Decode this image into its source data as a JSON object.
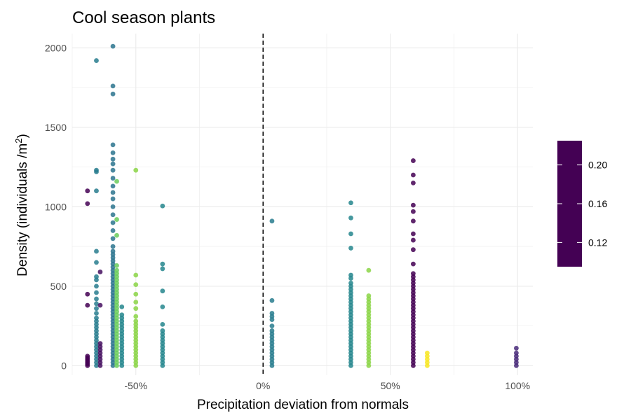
{
  "chart_data": {
    "type": "scatter",
    "title": "Cool season plants",
    "xlabel": "Precipitation deviation from normals",
    "ylabel": "Density (individuals /m",
    "ylabel_superscript": "2",
    "ylabel_suffix": ")",
    "xlim": [
      -0.75,
      1.06
    ],
    "ylim": [
      -60,
      2090
    ],
    "x_ticks": [
      -0.5,
      0,
      0.5,
      1.0
    ],
    "x_tick_labels": [
      "-50%",
      "0%",
      "50%",
      "100%"
    ],
    "y_ticks": [
      0,
      500,
      1000,
      1500,
      2000
    ],
    "y_tick_labels": [
      "0",
      "500",
      "1000",
      "1500",
      "2000"
    ],
    "reference_line": {
      "x": 0,
      "style": "dashed",
      "color": "#000000"
    },
    "grid": true,
    "legend": {
      "position": "right",
      "type": "colorbar",
      "range": [
        0.095,
        0.225
      ],
      "ticks": [
        0.12,
        0.16,
        0.2
      ],
      "tick_labels": [
        "0.12",
        "0.16",
        "0.20"
      ],
      "palette": [
        "#440154",
        "#482878",
        "#3e4989",
        "#31688e",
        "#26828e",
        "#1f9e89",
        "#35b779",
        "#6ece58",
        "#b5de2b",
        "#fde725"
      ]
    },
    "groups": [
      {
        "x": -0.69,
        "c": 0.225,
        "y": [
          0,
          10,
          20,
          30,
          40,
          50,
          60,
          380,
          450,
          1020,
          1100
        ]
      },
      {
        "x": -0.655,
        "c": 0.17,
        "y": [
          0,
          20,
          40,
          60,
          80,
          100,
          120,
          140,
          160,
          180,
          200,
          220,
          240,
          260,
          280,
          300,
          330,
          360,
          390,
          420,
          460,
          500,
          540,
          560,
          650,
          720,
          1100,
          1220,
          1230,
          1920
        ]
      },
      {
        "x": -0.64,
        "c": 0.22,
        "y": [
          0,
          20,
          40,
          60,
          80,
          100,
          120,
          140,
          380,
          590
        ]
      },
      {
        "x": -0.59,
        "c": 0.175,
        "y": [
          0,
          20,
          40,
          60,
          80,
          100,
          120,
          140,
          160,
          180,
          200,
          220,
          240,
          260,
          280,
          300,
          320,
          340,
          360,
          380,
          400,
          420,
          440,
          460,
          480,
          500,
          520,
          540,
          560,
          580,
          600,
          620,
          640,
          660,
          680,
          700,
          720,
          750,
          800,
          850,
          900,
          950,
          1000,
          1050,
          1090,
          1130,
          1180,
          1230,
          1270,
          1300,
          1340,
          1390,
          1710,
          1760,
          2010
        ]
      },
      {
        "x": -0.575,
        "c": 0.125,
        "y": [
          0,
          20,
          40,
          60,
          80,
          100,
          120,
          140,
          160,
          180,
          200,
          220,
          240,
          260,
          280,
          300,
          320,
          340,
          360,
          380,
          400,
          420,
          440,
          460,
          480,
          500,
          520,
          540,
          560,
          580,
          600,
          630,
          820,
          920,
          1160
        ]
      },
      {
        "x": -0.555,
        "c": 0.165,
        "y": [
          0,
          20,
          40,
          60,
          80,
          100,
          120,
          140,
          160,
          180,
          200,
          220,
          240,
          260,
          280,
          300,
          320,
          370
        ]
      },
      {
        "x": -0.5,
        "c": 0.118,
        "y": [
          0,
          20,
          40,
          60,
          80,
          100,
          120,
          140,
          160,
          180,
          200,
          220,
          240,
          260,
          280,
          310,
          360,
          400,
          450,
          510,
          570,
          1230
        ]
      },
      {
        "x": -0.395,
        "c": 0.165,
        "y": [
          0,
          20,
          40,
          60,
          80,
          100,
          120,
          140,
          160,
          180,
          200,
          220,
          260,
          370,
          470,
          610,
          640,
          1005
        ]
      },
      {
        "x": 0.035,
        "c": 0.17,
        "y": [
          0,
          20,
          40,
          60,
          80,
          100,
          120,
          140,
          160,
          180,
          200,
          220,
          250,
          290,
          310,
          330,
          410,
          910
        ]
      },
      {
        "x": 0.345,
        "c": 0.165,
        "y": [
          0,
          20,
          40,
          60,
          80,
          100,
          120,
          140,
          160,
          180,
          200,
          220,
          240,
          260,
          280,
          300,
          320,
          340,
          360,
          380,
          400,
          420,
          440,
          460,
          480,
          500,
          520,
          550,
          570,
          740,
          830,
          930,
          1025
        ]
      },
      {
        "x": 0.415,
        "c": 0.118,
        "y": [
          0,
          20,
          40,
          60,
          80,
          100,
          120,
          140,
          160,
          180,
          200,
          220,
          240,
          260,
          280,
          300,
          320,
          340,
          360,
          380,
          400,
          420,
          440,
          600
        ]
      },
      {
        "x": 0.59,
        "c": 0.225,
        "y": [
          0,
          20,
          40,
          60,
          80,
          100,
          120,
          140,
          160,
          180,
          200,
          220,
          240,
          260,
          280,
          300,
          320,
          340,
          360,
          380,
          400,
          420,
          440,
          460,
          480,
          500,
          520,
          540,
          560,
          580,
          640,
          730,
          790,
          830,
          910,
          970,
          1010,
          1150,
          1200,
          1290
        ]
      },
      {
        "x": 0.645,
        "c": 0.096,
        "y": [
          0,
          20,
          40,
          60,
          80
        ]
      },
      {
        "x": 0.995,
        "c": 0.21,
        "y": [
          0,
          20,
          40,
          60,
          80,
          110
        ]
      }
    ]
  }
}
